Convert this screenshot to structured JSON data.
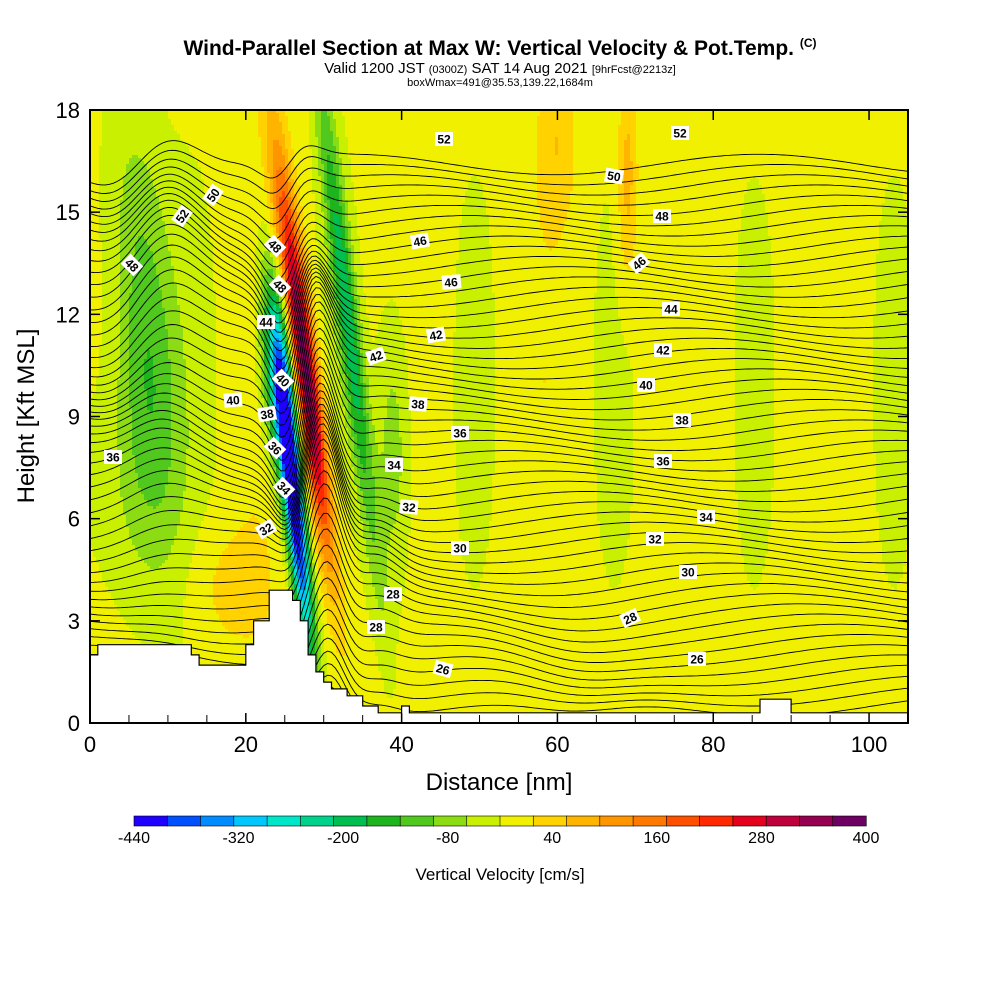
{
  "header": {
    "title": "Wind-Parallel Section at Max W: Vertical Velocity & Pot.Temp.",
    "title_mark": "(C)",
    "subtitle_main": "Valid 1200 JST",
    "subtitle_z": "(0300Z)",
    "subtitle_date": "SAT 14 Aug 2021",
    "subtitle_fcst": "[9hrFcst@2213z]",
    "subtitle2": "boxWmax=491@35.53,139.22,1684m"
  },
  "chart_data": {
    "type": "heatmap",
    "title": "Wind-Parallel Section at Max W: Vertical Velocity & Pot.Temp.",
    "xlabel": "Distance [nm]",
    "ylabel": "Height [Kft MSL]",
    "xlim": [
      0,
      105
    ],
    "ylim": [
      0,
      18
    ],
    "x_ticks": [
      "0",
      "20",
      "40",
      "60",
      "80",
      "100"
    ],
    "y_ticks": [
      "0",
      "3",
      "6",
      "9",
      "12",
      "15",
      "18"
    ],
    "colorbar": {
      "title": "Vertical Velocity [cm/s]",
      "labels": [
        "-440",
        "-320",
        "-200",
        "-80",
        "40",
        "160",
        "280",
        "400"
      ],
      "colors": [
        "#1e00ff",
        "#0050ff",
        "#008cff",
        "#00c8ff",
        "#00e6c8",
        "#00d28c",
        "#00be50",
        "#1eb41e",
        "#50c81e",
        "#8cdc14",
        "#c8f000",
        "#f0f000",
        "#ffd200",
        "#ffb400",
        "#ff9600",
        "#ff7800",
        "#ff5000",
        "#ff2800",
        "#e6001e",
        "#be003c",
        "#960050",
        "#6e0064"
      ]
    },
    "contour_labels": [
      "52",
      "50",
      "52",
      "48",
      "48",
      "48",
      "46",
      "44",
      "44",
      "42",
      "42",
      "40",
      "40",
      "38",
      "38",
      "36",
      "36",
      "36",
      "34",
      "34",
      "32",
      "32",
      "30",
      "28",
      "28",
      "26",
      "52",
      "50",
      "48",
      "46",
      "46",
      "44",
      "42",
      "40",
      "38",
      "36",
      "34",
      "32",
      "30",
      "28",
      "26"
    ],
    "terrain_profile_kft": [
      [
        0,
        2
      ],
      [
        1,
        2
      ],
      [
        1,
        2.3
      ],
      [
        13,
        2.3
      ],
      [
        13,
        2
      ],
      [
        14,
        2
      ],
      [
        14,
        1.7
      ],
      [
        20,
        1.7
      ],
      [
        20,
        2.3
      ],
      [
        21,
        2.3
      ],
      [
        21,
        3
      ],
      [
        23,
        3
      ],
      [
        23,
        3.9
      ],
      [
        26,
        3.9
      ],
      [
        26,
        3.6
      ],
      [
        27,
        3.6
      ],
      [
        27,
        3
      ],
      [
        28,
        3
      ],
      [
        28,
        2
      ],
      [
        29,
        2
      ],
      [
        29,
        1.5
      ],
      [
        30,
        1.5
      ],
      [
        30,
        1.2
      ],
      [
        31,
        1.2
      ],
      [
        31,
        1
      ],
      [
        33,
        1
      ],
      [
        33,
        0.8
      ],
      [
        35,
        0.8
      ],
      [
        35,
        0.5
      ],
      [
        37,
        0.5
      ],
      [
        37,
        0.3
      ],
      [
        40,
        0.3
      ],
      [
        40,
        0.5
      ],
      [
        41,
        0.5
      ],
      [
        41,
        0.3
      ],
      [
        86,
        0.3
      ],
      [
        86,
        0.7
      ],
      [
        90,
        0.7
      ],
      [
        90,
        0.3
      ],
      [
        105,
        0.3
      ]
    ],
    "theta_contours_kft": [
      24,
      24.5,
      25,
      25.5,
      26,
      26.5,
      27,
      27.5,
      28,
      28.5,
      29,
      29.5,
      30,
      30.5,
      31,
      31.5,
      32,
      32.5,
      33,
      33.5,
      34,
      34.5,
      35,
      35.5,
      36,
      36.5,
      37,
      37.5,
      38,
      38.5,
      39,
      39.5,
      40,
      40.5,
      41,
      41.5,
      42,
      42.5,
      43,
      43.5,
      44,
      44.5,
      45,
      45.5,
      46,
      46.5,
      47,
      47.5,
      48,
      48.5,
      49,
      49.5,
      50,
      50.5,
      51,
      51.5,
      52
    ]
  }
}
